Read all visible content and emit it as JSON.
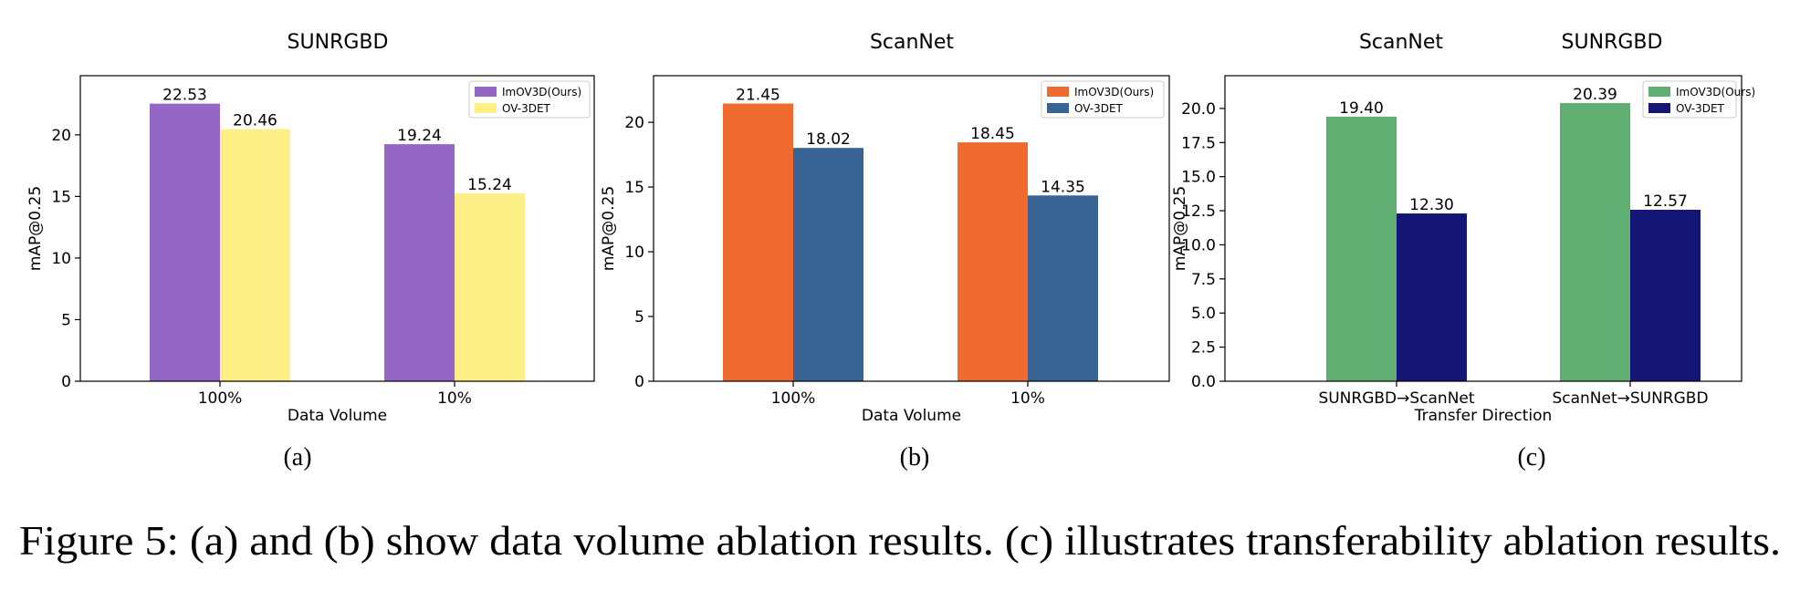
{
  "figure": {
    "caption": "Figure 5: (a) and (b) show data volume ablation results. (c) illustrates transferability ablation results."
  },
  "chart_data": [
    {
      "type": "bar",
      "panel_label": "(a)",
      "title": "SUNRGBD",
      "xlabel": "Data Volume",
      "ylabel": "mAP@0.25",
      "categories": [
        "100%",
        "10%"
      ],
      "series": [
        {
          "name": "ImOV3D(Ours)",
          "values": [
            22.53,
            19.24
          ],
          "color": "#9467c6"
        },
        {
          "name": "OV-3DET",
          "values": [
            20.46,
            15.24
          ],
          "color": "#fbef86"
        }
      ],
      "data_labels": [
        [
          "22.53",
          "19.24"
        ],
        [
          "20.46",
          "15.24"
        ]
      ],
      "ylim": [
        0,
        24.8
      ],
      "yticks": [
        0,
        5,
        10,
        15,
        20
      ],
      "ytick_labels": [
        "0",
        "5",
        "10",
        "15",
        "20"
      ],
      "legend": "top-right",
      "grid": false
    },
    {
      "type": "bar",
      "panel_label": "(b)",
      "title": "ScanNet",
      "xlabel": "Data Volume",
      "ylabel": "mAP@0.25",
      "categories": [
        "100%",
        "10%"
      ],
      "series": [
        {
          "name": "ImOV3D(Ours)",
          "values": [
            21.45,
            18.45
          ],
          "color": "#ee6a2e"
        },
        {
          "name": "OV-3DET",
          "values": [
            18.02,
            14.35
          ],
          "color": "#396394"
        }
      ],
      "data_labels": [
        [
          "21.45",
          "18.45"
        ],
        [
          "18.02",
          "14.35"
        ]
      ],
      "ylim": [
        0,
        23.6
      ],
      "yticks": [
        0,
        5,
        10,
        15,
        20
      ],
      "ytick_labels": [
        "0",
        "5",
        "10",
        "15",
        "20"
      ],
      "legend": "top-right",
      "grid": false
    },
    {
      "type": "bar",
      "panel_label": "(c)",
      "title": [
        "ScanNet",
        "SUNRGBD"
      ],
      "xlabel": "Transfer Direction",
      "ylabel": "mAP@0.25",
      "categories": [
        "SUNRGBD→ScanNet",
        "ScanNet→SUNRGBD"
      ],
      "series": [
        {
          "name": "ImOV3D(Ours)",
          "values": [
            19.4,
            20.39
          ],
          "color": "#60ae72"
        },
        {
          "name": "OV-3DET",
          "values": [
            12.3,
            12.57
          ],
          "color": "#141575"
        }
      ],
      "data_labels": [
        [
          "19.40",
          "20.39"
        ],
        [
          "12.30",
          "12.57"
        ]
      ],
      "ylim": [
        0,
        22.4
      ],
      "yticks": [
        0,
        2.5,
        5,
        7.5,
        10,
        12.5,
        15,
        17.5,
        20
      ],
      "ytick_labels": [
        "0.0",
        "2.5",
        "5.0",
        "7.5",
        "10.0",
        "12.5",
        "15.0",
        "17.5",
        "20.0"
      ],
      "legend": "top-right",
      "grid": false
    }
  ]
}
